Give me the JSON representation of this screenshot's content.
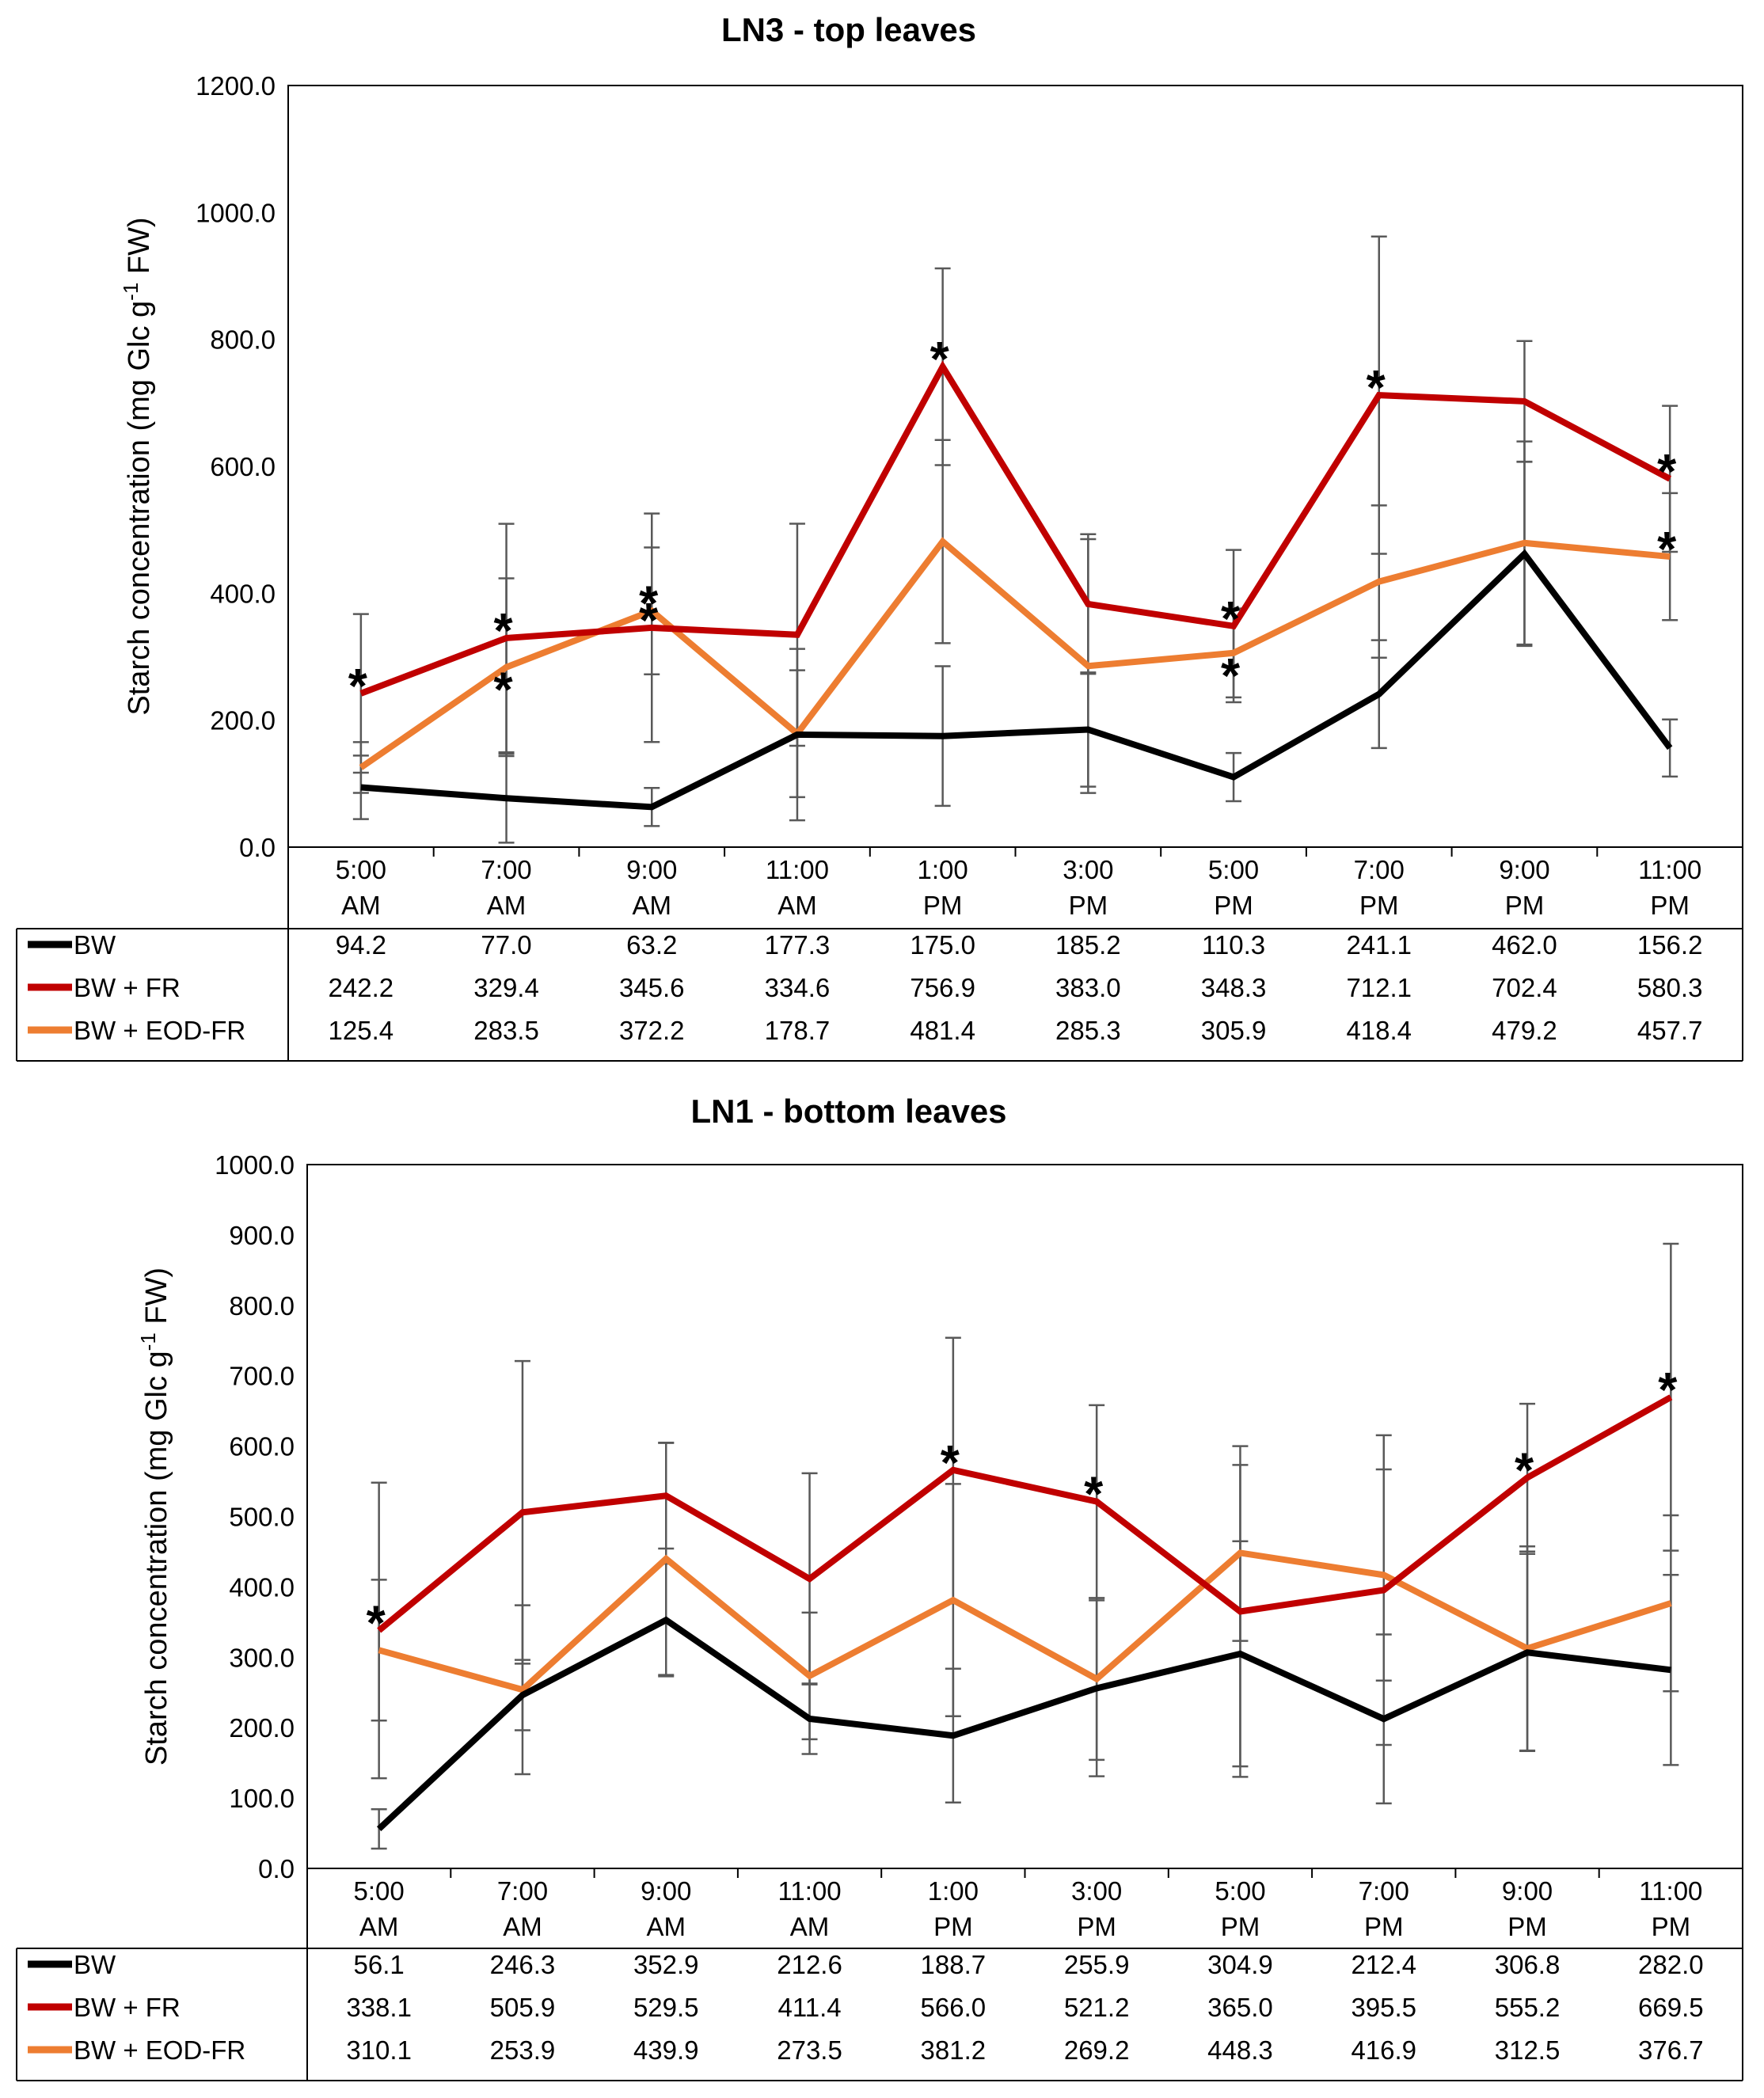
{
  "series_colors": {
    "BW": "#000000",
    "BW + FR": "#c00000",
    "BW + EOD-FR": "#ed7d31"
  },
  "errorbar_color": "#595959",
  "chart_data": [
    {
      "type": "line",
      "title": "LN3 - top leaves",
      "ylabel_pre": "Starch concentration (mg Glc g",
      "ylabel_sup": "-1",
      "ylabel_post": " FW)",
      "ylim": [
        0,
        1200
      ],
      "yticks": [
        "0.0",
        "200.0",
        "400.0",
        "600.0",
        "800.0",
        "1000.0",
        "1200.0"
      ],
      "categories": [
        [
          "5:00",
          "AM"
        ],
        [
          "7:00",
          "AM"
        ],
        [
          "9:00",
          "AM"
        ],
        [
          "11:00",
          "AM"
        ],
        [
          "1:00",
          "PM"
        ],
        [
          "3:00",
          "PM"
        ],
        [
          "5:00",
          "PM"
        ],
        [
          "7:00",
          "PM"
        ],
        [
          "9:00",
          "PM"
        ],
        [
          "11:00",
          "PM"
        ]
      ],
      "series": [
        {
          "name": "BW",
          "values": [
            94.2,
            77.0,
            63.2,
            177.3,
            175.0,
            185.2,
            110.3,
            241.1,
            462.0,
            156.2
          ],
          "labels": [
            "94.2",
            "77.0",
            "63.2",
            "177.3",
            "175.0",
            "185.2",
            "110.3",
            "241.1",
            "462.0",
            "156.2"
          ],
          "errors": [
            50,
            70,
            30,
            135,
            110,
            90,
            38,
            85,
            145,
            45
          ],
          "stars": []
        },
        {
          "name": "BW + FR",
          "values": [
            242.2,
            329.4,
            345.6,
            334.6,
            756.9,
            383.0,
            348.3,
            712.1,
            702.4,
            580.3
          ],
          "labels": [
            "242.2",
            "329.4",
            "345.6",
            "334.6",
            "756.9",
            "383.0",
            "348.3",
            "712.1",
            "702.4",
            "580.3"
          ],
          "errors": [
            125,
            180,
            180,
            175,
            155,
            110,
            120,
            250,
            95,
            115
          ],
          "stars": [
            0,
            1,
            2,
            4,
            6,
            7,
            9
          ]
        },
        {
          "name": "BW + EOD-FR",
          "values": [
            125.4,
            283.5,
            372.2,
            178.7,
            481.4,
            285.3,
            305.9,
            418.4,
            479.2,
            457.7
          ],
          "labels": [
            "125.4",
            "283.5",
            "372.2",
            "178.7",
            "481.4",
            "285.3",
            "305.9",
            "418.4",
            "479.2",
            "457.7"
          ],
          "errors": [
            40,
            140,
            100,
            100,
            160,
            200,
            70,
            120,
            160,
            100
          ],
          "stars": [
            1,
            2,
            6,
            9
          ]
        }
      ]
    },
    {
      "type": "line",
      "title": "LN1 - bottom leaves",
      "ylabel_pre": "Starch concentration (mg Glc g",
      "ylabel_sup": "-1",
      "ylabel_post": " FW)",
      "ylim": [
        0,
        1000
      ],
      "yticks": [
        "0.0",
        "100.0",
        "200.0",
        "300.0",
        "400.0",
        "500.0",
        "600.0",
        "700.0",
        "800.0",
        "900.0",
        "1000.0"
      ],
      "categories": [
        [
          "5:00",
          "AM"
        ],
        [
          "7:00",
          "AM"
        ],
        [
          "9:00",
          "AM"
        ],
        [
          "11:00",
          "AM"
        ],
        [
          "1:00",
          "PM"
        ],
        [
          "3:00",
          "PM"
        ],
        [
          "5:00",
          "PM"
        ],
        [
          "7:00",
          "PM"
        ],
        [
          "9:00",
          "PM"
        ],
        [
          "11:00",
          "PM"
        ]
      ],
      "series": [
        {
          "name": "BW",
          "values": [
            56.1,
            246.3,
            352.9,
            212.6,
            188.7,
            255.9,
            304.9,
            212.4,
            306.8,
            282.0
          ],
          "labels": [
            "56.1",
            "246.3",
            "352.9",
            "212.6",
            "188.7",
            "255.9",
            "304.9",
            "212.4",
            "306.8",
            "282.0"
          ],
          "errors": [
            28,
            50,
            80,
            50,
            95,
            125,
            160,
            120,
            140,
            135
          ],
          "stars": []
        },
        {
          "name": "BW + FR",
          "values": [
            338.1,
            505.9,
            529.5,
            411.4,
            566.0,
            521.2,
            365.0,
            395.5,
            555.2,
            669.5
          ],
          "labels": [
            "338.1",
            "505.9",
            "529.5",
            "411.4",
            "566.0",
            "521.2",
            "365.0",
            "395.5",
            "555.2",
            "669.5"
          ],
          "errors": [
            210,
            215,
            75,
            150,
            188,
            137,
            235,
            220,
            105,
            218
          ],
          "stars": [
            0,
            4,
            5,
            8,
            9
          ]
        },
        {
          "name": "BW + EOD-FR",
          "values": [
            310.1,
            253.9,
            439.9,
            273.5,
            381.2,
            269.2,
            448.3,
            416.9,
            312.5,
            376.7
          ],
          "labels": [
            "310.1",
            "253.9",
            "439.9",
            "273.5",
            "381.2",
            "269.2",
            "448.3",
            "416.9",
            "312.5",
            "376.7"
          ],
          "errors": [
            100,
            120,
            165,
            90,
            165,
            115,
            125,
            150,
            145,
            125
          ],
          "stars": []
        }
      ]
    }
  ]
}
